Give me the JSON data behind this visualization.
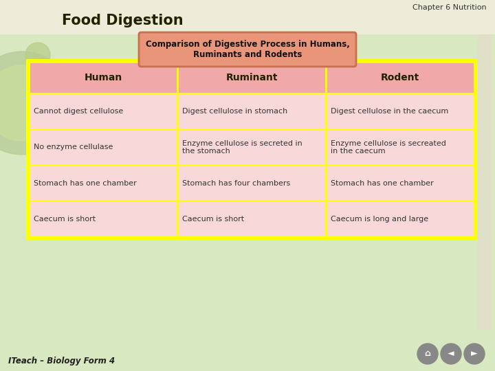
{
  "title_top_right": "Chapter 6 Nutrition",
  "title_main": "Food Digestion",
  "subtitle": "Comparison of Digestive Process in Humans,\nRuminants and Rodents",
  "headers": [
    "Human",
    "Ruminant",
    "Rodent"
  ],
  "rows": [
    [
      "Cannot digest cellulose",
      "Digest cellulose in stomach",
      "Digest cellulose in the caecum"
    ],
    [
      "No enzyme cellulase",
      "Enzyme cellulose is secreted in\nthe stomach",
      "Enzyme cellulose is secreated\nin the caecum"
    ],
    [
      "Stomach has one chamber",
      "Stomach has four chambers",
      "Stomach has one chamber"
    ],
    [
      "Caecum is short",
      "Caecum is short",
      "Caecum is long and large"
    ]
  ],
  "bg_color": "#d8e8c0",
  "header_bg": "#f0a8a8",
  "cell_bg": "#f8d8d8",
  "table_border": "#ffff00",
  "subtitle_box_bg": "#e8957a",
  "subtitle_box_border": "#c87050",
  "footer_text": "ITeach – Biology Form 4",
  "title_main_color": "#222200",
  "header_text_color": "#222200",
  "cell_text_color": "#333333",
  "top_bar_color": "#e8e8d0",
  "left_circle_color": "#c8d8a0"
}
